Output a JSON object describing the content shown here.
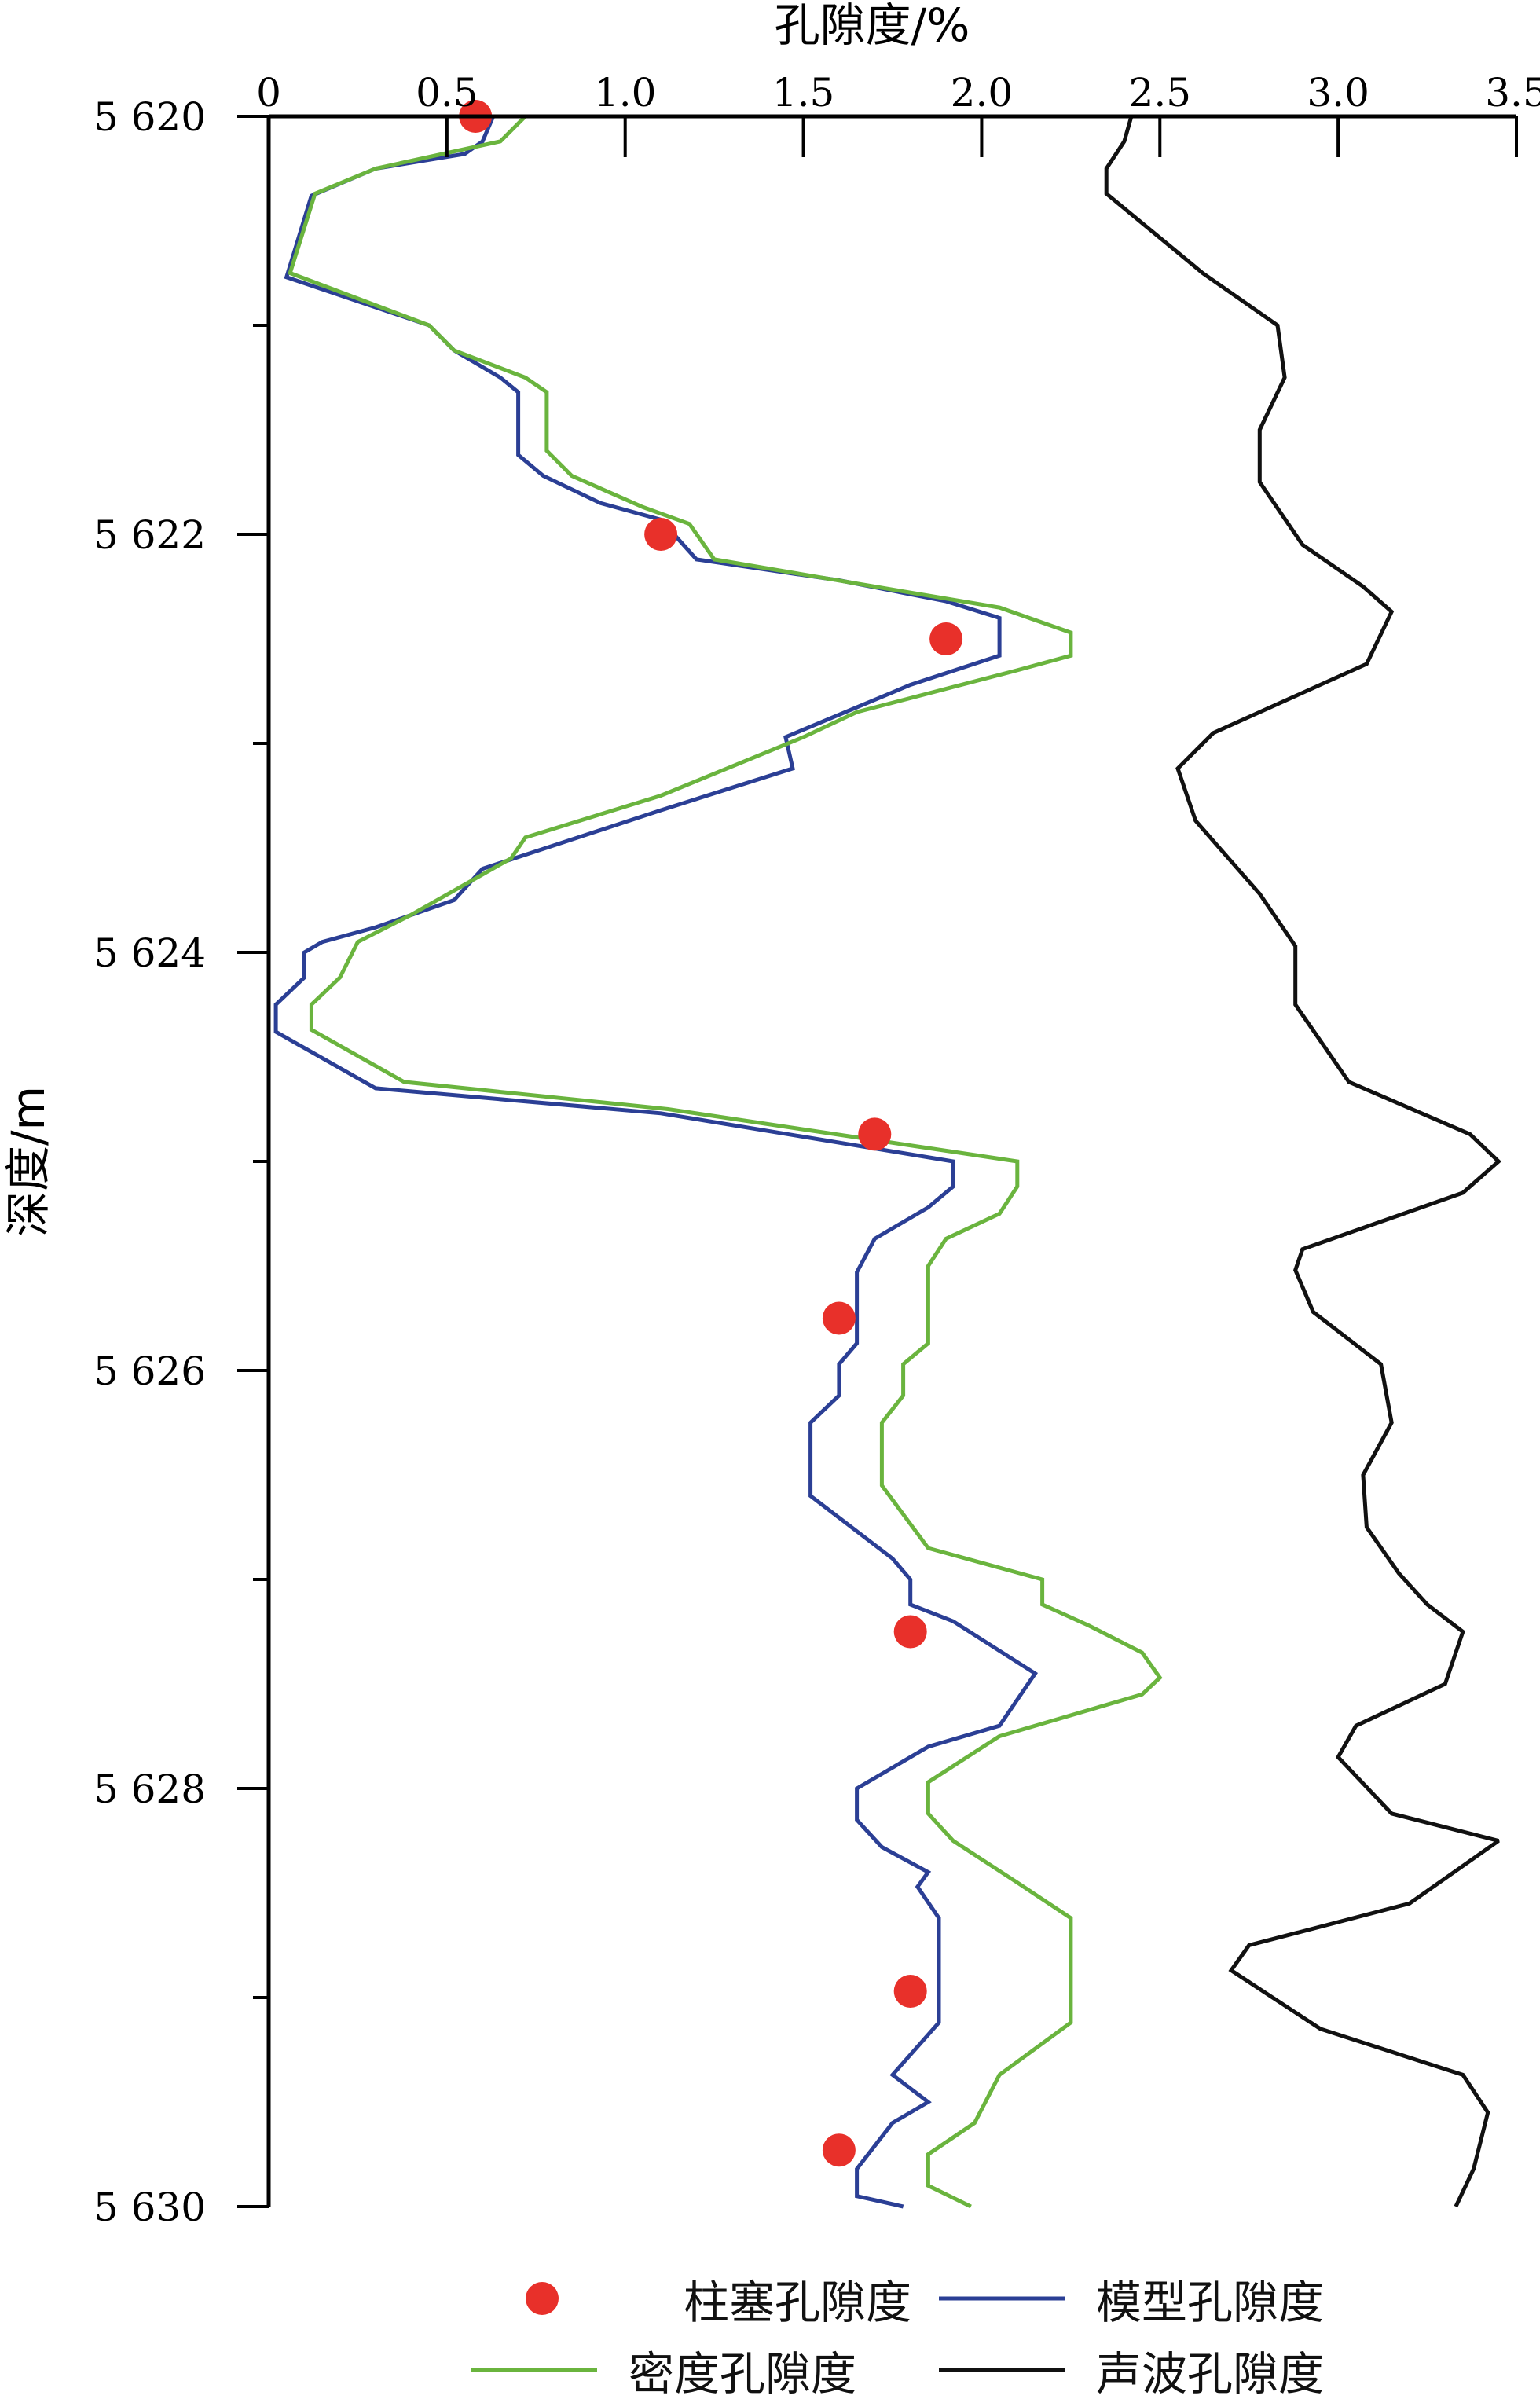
{
  "chart_data": {
    "type": "line",
    "title": "",
    "xlabel": "孔隙度/%",
    "ylabel": "深度/m",
    "xlim": [
      0,
      3.5
    ],
    "ylim": [
      5620,
      5630
    ],
    "x_axis_position": "top",
    "y_inverted": true,
    "grid": false,
    "xticks": [
      0,
      0.5,
      1.0,
      1.5,
      2.0,
      2.5,
      3.0,
      3.5
    ],
    "xtick_labels": [
      "0",
      "0.5",
      "1.0",
      "1.5",
      "2.0",
      "2.5",
      "3.0",
      "3.5"
    ],
    "yticks": [
      5620,
      5622,
      5624,
      5626,
      5628,
      5630
    ],
    "ytick_labels": [
      "5 620",
      "5 622",
      "5 624",
      "5 626",
      "5 628",
      "5 630"
    ],
    "y_minor_ticks": [
      5621,
      5623,
      5625,
      5627,
      5629
    ],
    "legend_position": "bottom",
    "series": [
      {
        "name": "柱塞孔隙度",
        "kind": "scatter",
        "color": "#e8302a",
        "points": [
          [
            0.58,
            5620.0
          ],
          [
            1.1,
            5622.0
          ],
          [
            1.9,
            5622.5
          ],
          [
            1.7,
            5624.87
          ],
          [
            1.6,
            5625.75
          ],
          [
            1.8,
            5627.25
          ],
          [
            1.8,
            5628.97
          ],
          [
            1.6,
            5629.73
          ]
        ]
      },
      {
        "name": "模型孔隙度",
        "kind": "line",
        "color": "#2b3f95",
        "points": [
          [
            0.63,
            5620.0
          ],
          [
            0.6,
            5620.12
          ],
          [
            0.55,
            5620.18
          ],
          [
            0.3,
            5620.25
          ],
          [
            0.12,
            5620.38
          ],
          [
            0.05,
            5620.77
          ],
          [
            0.45,
            5621.0
          ],
          [
            0.52,
            5621.12
          ],
          [
            0.65,
            5621.25
          ],
          [
            0.7,
            5621.32
          ],
          [
            0.7,
            5621.62
          ],
          [
            0.77,
            5621.72
          ],
          [
            0.93,
            5621.85
          ],
          [
            1.1,
            5621.93
          ],
          [
            1.2,
            5622.12
          ],
          [
            1.6,
            5622.22
          ],
          [
            1.9,
            5622.32
          ],
          [
            2.05,
            5622.4
          ],
          [
            2.05,
            5622.58
          ],
          [
            1.8,
            5622.72
          ],
          [
            1.45,
            5622.97
          ],
          [
            1.47,
            5623.12
          ],
          [
            1.1,
            5623.32
          ],
          [
            0.6,
            5623.6
          ],
          [
            0.52,
            5623.75
          ],
          [
            0.3,
            5623.88
          ],
          [
            0.15,
            5623.95
          ],
          [
            0.1,
            5624.0
          ],
          [
            0.1,
            5624.12
          ],
          [
            0.02,
            5624.25
          ],
          [
            0.02,
            5624.38
          ],
          [
            0.3,
            5624.65
          ],
          [
            1.1,
            5624.77
          ],
          [
            1.92,
            5625.0
          ],
          [
            1.92,
            5625.12
          ],
          [
            1.85,
            5625.22
          ],
          [
            1.7,
            5625.37
          ],
          [
            1.65,
            5625.53
          ],
          [
            1.65,
            5625.87
          ],
          [
            1.6,
            5625.97
          ],
          [
            1.6,
            5626.12
          ],
          [
            1.52,
            5626.25
          ],
          [
            1.52,
            5626.6
          ],
          [
            1.75,
            5626.9
          ],
          [
            1.8,
            5627.0
          ],
          [
            1.8,
            5627.12
          ],
          [
            1.92,
            5627.2
          ],
          [
            2.15,
            5627.45
          ],
          [
            2.05,
            5627.7
          ],
          [
            1.85,
            5627.8
          ],
          [
            1.65,
            5628.0
          ],
          [
            1.65,
            5628.15
          ],
          [
            1.72,
            5628.28
          ],
          [
            1.85,
            5628.4
          ],
          [
            1.82,
            5628.47
          ],
          [
            1.88,
            5628.62
          ],
          [
            1.88,
            5629.12
          ],
          [
            1.75,
            5629.37
          ],
          [
            1.85,
            5629.5
          ],
          [
            1.75,
            5629.6
          ],
          [
            1.65,
            5629.82
          ],
          [
            1.65,
            5629.95
          ],
          [
            1.78,
            5630.0
          ]
        ]
      },
      {
        "name": "密度孔隙度",
        "kind": "line",
        "color": "#6ab43e",
        "points": [
          [
            0.72,
            5620.0
          ],
          [
            0.65,
            5620.12
          ],
          [
            0.3,
            5620.25
          ],
          [
            0.13,
            5620.37
          ],
          [
            0.06,
            5620.75
          ],
          [
            0.45,
            5621.0
          ],
          [
            0.52,
            5621.12
          ],
          [
            0.72,
            5621.25
          ],
          [
            0.78,
            5621.32
          ],
          [
            0.78,
            5621.6
          ],
          [
            0.85,
            5621.72
          ],
          [
            1.05,
            5621.87
          ],
          [
            1.18,
            5621.95
          ],
          [
            1.25,
            5622.12
          ],
          [
            1.7,
            5622.25
          ],
          [
            2.05,
            5622.35
          ],
          [
            2.25,
            5622.47
          ],
          [
            2.25,
            5622.58
          ],
          [
            2.1,
            5622.65
          ],
          [
            1.65,
            5622.85
          ],
          [
            1.5,
            5622.97
          ],
          [
            1.1,
            5623.25
          ],
          [
            0.72,
            5623.45
          ],
          [
            0.68,
            5623.55
          ],
          [
            0.4,
            5623.82
          ],
          [
            0.25,
            5623.95
          ],
          [
            0.2,
            5624.12
          ],
          [
            0.12,
            5624.25
          ],
          [
            0.12,
            5624.37
          ],
          [
            0.38,
            5624.62
          ],
          [
            1.12,
            5624.75
          ],
          [
            2.1,
            5625.0
          ],
          [
            2.1,
            5625.12
          ],
          [
            2.05,
            5625.25
          ],
          [
            1.9,
            5625.37
          ],
          [
            1.85,
            5625.5
          ],
          [
            1.85,
            5625.87
          ],
          [
            1.78,
            5625.97
          ],
          [
            1.78,
            5626.12
          ],
          [
            1.72,
            5626.25
          ],
          [
            1.72,
            5626.55
          ],
          [
            1.85,
            5626.85
          ],
          [
            2.17,
            5627.0
          ],
          [
            2.17,
            5627.12
          ],
          [
            2.3,
            5627.22
          ],
          [
            2.45,
            5627.35
          ],
          [
            2.5,
            5627.47
          ],
          [
            2.45,
            5627.55
          ],
          [
            2.05,
            5627.75
          ],
          [
            1.85,
            5627.97
          ],
          [
            1.85,
            5628.12
          ],
          [
            1.92,
            5628.25
          ],
          [
            2.1,
            5628.45
          ],
          [
            2.25,
            5628.62
          ],
          [
            2.25,
            5629.12
          ],
          [
            2.05,
            5629.37
          ],
          [
            1.98,
            5629.6
          ],
          [
            1.85,
            5629.75
          ],
          [
            1.85,
            5629.9
          ],
          [
            1.97,
            5630.0
          ]
        ]
      },
      {
        "name": "声波孔隙度",
        "kind": "line",
        "color": "#111111",
        "points": [
          [
            2.42,
            5620.0
          ],
          [
            2.4,
            5620.12
          ],
          [
            2.35,
            5620.25
          ],
          [
            2.35,
            5620.37
          ],
          [
            2.62,
            5620.75
          ],
          [
            2.83,
            5621.0
          ],
          [
            2.85,
            5621.25
          ],
          [
            2.78,
            5621.5
          ],
          [
            2.78,
            5621.75
          ],
          [
            2.9,
            5622.05
          ],
          [
            3.07,
            5622.25
          ],
          [
            3.15,
            5622.37
          ],
          [
            3.08,
            5622.62
          ],
          [
            2.65,
            5622.95
          ],
          [
            2.55,
            5623.12
          ],
          [
            2.6,
            5623.37
          ],
          [
            2.78,
            5623.72
          ],
          [
            2.88,
            5623.97
          ],
          [
            2.88,
            5624.25
          ],
          [
            3.03,
            5624.62
          ],
          [
            3.37,
            5624.87
          ],
          [
            3.45,
            5625.0
          ],
          [
            3.35,
            5625.15
          ],
          [
            2.9,
            5625.42
          ],
          [
            2.88,
            5625.52
          ],
          [
            2.93,
            5625.72
          ],
          [
            3.12,
            5625.97
          ],
          [
            3.15,
            5626.25
          ],
          [
            3.07,
            5626.5
          ],
          [
            3.08,
            5626.75
          ],
          [
            3.17,
            5626.97
          ],
          [
            3.25,
            5627.12
          ],
          [
            3.35,
            5627.25
          ],
          [
            3.3,
            5627.5
          ],
          [
            3.05,
            5627.7
          ],
          [
            3.0,
            5627.85
          ],
          [
            3.15,
            5628.12
          ],
          [
            3.45,
            5628.25
          ],
          [
            3.2,
            5628.55
          ],
          [
            2.75,
            5628.75
          ],
          [
            2.7,
            5628.87
          ],
          [
            2.95,
            5629.15
          ],
          [
            3.35,
            5629.37
          ],
          [
            3.42,
            5629.55
          ],
          [
            3.38,
            5629.82
          ],
          [
            3.33,
            5630.0
          ]
        ]
      }
    ]
  }
}
